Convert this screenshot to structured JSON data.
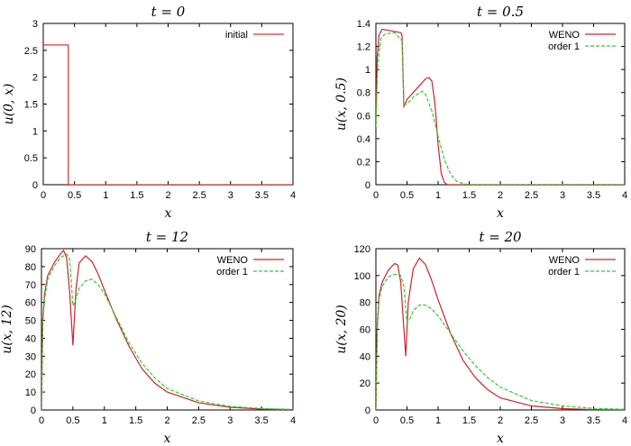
{
  "chart_data": [
    {
      "type": "line",
      "title": "t = 0",
      "xlabel": "x",
      "ylabel": "u(0, x)",
      "xlim": [
        0,
        4
      ],
      "ylim": [
        0,
        3
      ],
      "xticks": [
        "0",
        "0.5",
        "1",
        "1.5",
        "2",
        "2.5",
        "3",
        "3.5",
        "4"
      ],
      "yticks": [
        "0",
        "0.5",
        "1",
        "1.5",
        "2",
        "2.5",
        "3"
      ],
      "legend": "top-right",
      "series": [
        {
          "name": "initial",
          "color": "#e8302e",
          "dash": "solid",
          "x": [
            0,
            0.4,
            0.4,
            4
          ],
          "y": [
            2.6,
            2.6,
            0,
            0
          ]
        }
      ]
    },
    {
      "type": "line",
      "title": "t = 0.5",
      "xlabel": "x",
      "ylabel": "u(x, 0.5)",
      "xlim": [
        0,
        4
      ],
      "ylim": [
        0,
        1.4
      ],
      "xticks": [
        "0",
        "0.5",
        "1",
        "1.5",
        "2",
        "2.5",
        "3",
        "3.5",
        "4"
      ],
      "yticks": [
        "0",
        "0.2",
        "0.4",
        "0.6",
        "0.8",
        "1",
        "1.2",
        "1.4"
      ],
      "legend": "top-right",
      "series": [
        {
          "name": "WENO",
          "color": "#d2232a",
          "dash": "solid",
          "x": [
            0,
            0.02,
            0.05,
            0.1,
            0.2,
            0.3,
            0.4,
            0.42,
            0.45,
            0.47,
            0.5,
            0.6,
            0.7,
            0.8,
            0.85,
            0.9,
            0.95,
            1.0,
            1.05,
            1.1,
            1.15,
            1.2,
            4
          ],
          "y": [
            0.55,
            1.1,
            1.3,
            1.35,
            1.34,
            1.33,
            1.32,
            1.3,
            0.68,
            0.7,
            0.74,
            0.8,
            0.86,
            0.92,
            0.93,
            0.9,
            0.7,
            0.35,
            0.1,
            0.02,
            0,
            0,
            0
          ]
        },
        {
          "name": "order 1",
          "color": "#2fd02f",
          "dash": "dashed",
          "x": [
            0,
            0.03,
            0.08,
            0.15,
            0.3,
            0.42,
            0.45,
            0.5,
            0.6,
            0.7,
            0.75,
            0.8,
            0.9,
            1.0,
            1.1,
            1.2,
            1.3,
            1.4,
            1.5,
            4
          ],
          "y": [
            0.5,
            1.05,
            1.27,
            1.31,
            1.32,
            1.25,
            0.7,
            0.7,
            0.76,
            0.8,
            0.81,
            0.78,
            0.64,
            0.42,
            0.22,
            0.09,
            0.03,
            0.01,
            0,
            0
          ]
        }
      ]
    },
    {
      "type": "line",
      "title": "t = 12",
      "xlabel": "x",
      "ylabel": "u(x, 12)",
      "xlim": [
        0,
        4
      ],
      "ylim": [
        0,
        90
      ],
      "xticks": [
        "0",
        "0.5",
        "1",
        "1.5",
        "2",
        "2.5",
        "3",
        "3.5",
        "4"
      ],
      "yticks": [
        "0",
        "10",
        "20",
        "30",
        "40",
        "50",
        "60",
        "70",
        "80",
        "90"
      ],
      "legend": "top-right",
      "series": [
        {
          "name": "WENO",
          "color": "#d2232a",
          "dash": "solid",
          "x": [
            0,
            0.02,
            0.05,
            0.1,
            0.2,
            0.3,
            0.35,
            0.4,
            0.45,
            0.5,
            0.55,
            0.6,
            0.7,
            0.8,
            0.9,
            1.0,
            1.2,
            1.4,
            1.6,
            1.8,
            2.0,
            2.5,
            3.0,
            3.5,
            4.0
          ],
          "y": [
            0,
            50,
            65,
            75,
            82,
            87,
            89,
            85,
            65,
            36,
            68,
            82,
            86,
            83,
            76,
            67,
            50,
            35,
            23,
            15,
            10,
            4,
            1.5,
            0.5,
            0.2
          ]
        },
        {
          "name": "order 1",
          "color": "#2fd02f",
          "dash": "dashed",
          "x": [
            0,
            0.02,
            0.05,
            0.1,
            0.2,
            0.3,
            0.4,
            0.45,
            0.5,
            0.55,
            0.6,
            0.7,
            0.8,
            0.9,
            1.0,
            1.2,
            1.4,
            1.6,
            1.8,
            2.0,
            2.5,
            3.0,
            3.5,
            4.0
          ],
          "y": [
            0,
            48,
            62,
            73,
            80,
            85,
            87,
            84,
            58,
            62,
            68,
            72,
            73,
            70,
            65,
            51,
            37,
            26,
            18,
            12,
            5,
            2,
            0.8,
            0.3
          ]
        }
      ]
    },
    {
      "type": "line",
      "title": "t = 20",
      "xlabel": "x",
      "ylabel": "u(x, 20)",
      "xlim": [
        0,
        4
      ],
      "ylim": [
        0,
        120
      ],
      "xticks": [
        "0",
        "0.5",
        "1",
        "1.5",
        "2",
        "2.5",
        "3",
        "3.5",
        "4"
      ],
      "yticks": [
        "0",
        "20",
        "40",
        "60",
        "80",
        "100",
        "120"
      ],
      "legend": "top-right",
      "series": [
        {
          "name": "WENO",
          "color": "#d2232a",
          "dash": "solid",
          "x": [
            0,
            0.02,
            0.05,
            0.1,
            0.2,
            0.3,
            0.35,
            0.4,
            0.45,
            0.48,
            0.52,
            0.6,
            0.7,
            0.8,
            0.9,
            1.0,
            1.2,
            1.4,
            1.6,
            1.8,
            2.0,
            2.5,
            3.0,
            3.5,
            4.0
          ],
          "y": [
            0,
            60,
            85,
            95,
            104,
            109,
            108,
            95,
            60,
            40,
            80,
            105,
            113,
            108,
            96,
            82,
            57,
            37,
            24,
            15,
            9,
            3,
            1,
            0.3,
            0.1
          ]
        },
        {
          "name": "order 1",
          "color": "#2fd02f",
          "dash": "dashed",
          "x": [
            0,
            0.02,
            0.05,
            0.1,
            0.2,
            0.3,
            0.4,
            0.45,
            0.5,
            0.55,
            0.6,
            0.7,
            0.8,
            0.9,
            1.0,
            1.2,
            1.4,
            1.6,
            1.8,
            2.0,
            2.5,
            3.0,
            3.5,
            4.0
          ],
          "y": [
            0,
            58,
            82,
            92,
            99,
            101,
            100,
            92,
            65,
            68,
            74,
            78,
            78,
            75,
            70,
            57,
            44,
            33,
            24,
            17,
            7,
            3,
            1.2,
            0.5
          ]
        }
      ]
    }
  ]
}
